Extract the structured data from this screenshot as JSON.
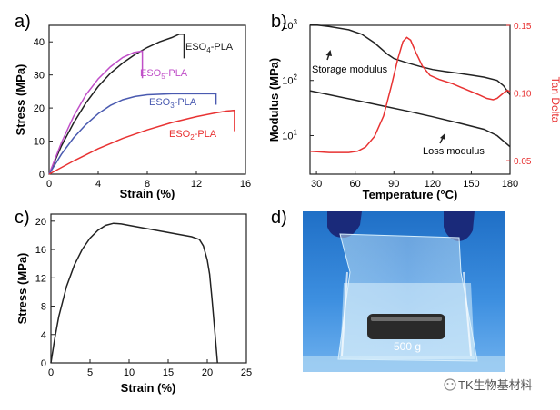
{
  "panels": {
    "a": "a)",
    "b": "b)",
    "c": "c)",
    "d": "d)"
  },
  "chart_data": [
    {
      "id": "a",
      "type": "line",
      "xlabel": "Strain (%)",
      "ylabel": "Stress (MPa)",
      "xlim": [
        0,
        16
      ],
      "ylim": [
        0,
        45
      ],
      "xticks": [
        0,
        4,
        8,
        12,
        16
      ],
      "yticks": [
        0,
        10,
        20,
        30,
        40
      ],
      "series": [
        {
          "name": "ESO4-PLA",
          "label_main": "ESO",
          "label_sub": "4",
          "label_tail": "-PLA",
          "color": "#222222",
          "x": [
            0,
            1,
            2,
            3,
            4,
            5,
            6,
            7,
            8,
            9,
            10,
            10.6,
            11.0,
            11.0
          ],
          "y": [
            0,
            8.5,
            15.5,
            21.5,
            26.5,
            30.5,
            33.6,
            36.2,
            38.3,
            40.0,
            41.3,
            42.3,
            42.3,
            35.0
          ]
        },
        {
          "name": "ESO5-PLA",
          "label_main": "ESO",
          "label_sub": "5",
          "label_tail": "-PLA",
          "color": "#c04fc8",
          "x": [
            0,
            1,
            2,
            3,
            4,
            5,
            6,
            6.9,
            7.6,
            7.6
          ],
          "y": [
            0,
            9.5,
            17.5,
            24.0,
            28.8,
            32.5,
            35.3,
            36.8,
            37.2,
            29.0
          ]
        },
        {
          "name": "ESO3-PLA",
          "label_main": "ESO",
          "label_sub": "3",
          "label_tail": "-PLA",
          "color": "#4a5ab0",
          "x": [
            0,
            1,
            2,
            3,
            4,
            5,
            6,
            7,
            8,
            10,
            12,
            13.6,
            13.6
          ],
          "y": [
            0,
            6.0,
            11.0,
            15.0,
            18.3,
            20.8,
            22.5,
            23.5,
            24.0,
            24.3,
            24.3,
            24.3,
            21.0
          ]
        },
        {
          "name": "ESO2-PLA",
          "label_main": "ESO",
          "label_sub": "2",
          "label_tail": "-PLA",
          "color": "#e83232",
          "x": [
            0,
            2,
            4,
            6,
            8,
            10,
            12,
            13.5,
            14.5,
            15.1,
            15.1
          ],
          "y": [
            0,
            4.0,
            7.7,
            10.8,
            13.4,
            15.6,
            17.4,
            18.5,
            19.1,
            19.3,
            13.0
          ]
        }
      ]
    },
    {
      "id": "b",
      "type": "line",
      "xlabel": "Temperature (°C)",
      "ylabel": "Modulus (MPa)",
      "y2label": "Tan Delta",
      "xlim": [
        25,
        180
      ],
      "ylim_log10": [
        0.3,
        3.0
      ],
      "y2lim": [
        0.04,
        0.15
      ],
      "xticks": [
        30,
        60,
        90,
        120,
        150,
        180
      ],
      "yticks_log": [
        {
          "base": "10",
          "exp": "1",
          "value": 10
        },
        {
          "base": "10",
          "exp": "2",
          "value": 100
        },
        {
          "base": "10",
          "exp": "3",
          "value": 1000
        }
      ],
      "y2ticks": [
        "0.05",
        "0.10",
        "0.15"
      ],
      "y2tick_values": [
        0.05,
        0.1,
        0.15
      ],
      "series": [
        {
          "name": "Storage modulus",
          "color": "#222222",
          "axis": "left",
          "x": [
            25,
            40,
            55,
            65,
            75,
            85,
            90,
            100,
            110,
            120,
            130,
            140,
            150,
            160,
            170,
            175,
            180
          ],
          "y": [
            1050,
            950,
            830,
            690,
            480,
            300,
            250,
            210,
            180,
            158,
            145,
            135,
            125,
            115,
            100,
            80,
            55
          ]
        },
        {
          "name": "Loss modulus",
          "color": "#222222",
          "axis": "left",
          "x": [
            25,
            40,
            60,
            80,
            100,
            120,
            140,
            160,
            170,
            180
          ],
          "y": [
            65,
            55,
            44,
            35,
            28,
            22,
            17,
            13,
            10,
            6.3
          ]
        },
        {
          "name": "Tan Delta",
          "color": "#e83232",
          "axis": "right",
          "x": [
            25,
            40,
            55,
            62,
            68,
            75,
            82,
            88,
            93,
            97,
            100,
            103,
            107,
            112,
            118,
            125,
            135,
            145,
            155,
            162,
            167,
            170,
            175,
            178,
            180
          ],
          "y": [
            0.057,
            0.056,
            0.056,
            0.057,
            0.06,
            0.068,
            0.083,
            0.105,
            0.125,
            0.138,
            0.141,
            0.139,
            0.13,
            0.12,
            0.113,
            0.11,
            0.107,
            0.103,
            0.099,
            0.096,
            0.095,
            0.096,
            0.1,
            0.102,
            0.101
          ]
        }
      ],
      "annotations": [
        "Storage modulus",
        "Loss modulus"
      ]
    },
    {
      "id": "c",
      "type": "line",
      "xlabel": "Strain (%)",
      "ylabel": "Stress (MPa)",
      "xlim": [
        0,
        25
      ],
      "ylim": [
        0,
        21
      ],
      "xticks": [
        0,
        5,
        10,
        15,
        20,
        25
      ],
      "yticks": [
        0,
        4,
        8,
        12,
        16,
        20
      ],
      "series": [
        {
          "name": "stress-strain",
          "color": "#222222",
          "x": [
            0,
            0.5,
            1,
            2,
            3,
            4,
            5,
            6,
            7,
            8,
            9,
            10,
            12,
            14,
            16,
            18,
            19,
            19.5,
            20.0,
            20.3,
            20.6,
            21.0,
            21.3
          ],
          "y": [
            0,
            3.5,
            6.5,
            10.8,
            13.8,
            16.0,
            17.6,
            18.7,
            19.4,
            19.7,
            19.6,
            19.4,
            19.0,
            18.6,
            18.2,
            17.8,
            17.4,
            16.5,
            14.5,
            12.5,
            9.0,
            4.0,
            0
          ]
        }
      ]
    }
  ],
  "photo": {
    "load_label": "500 g"
  },
  "watermark": "TK生物基材料"
}
